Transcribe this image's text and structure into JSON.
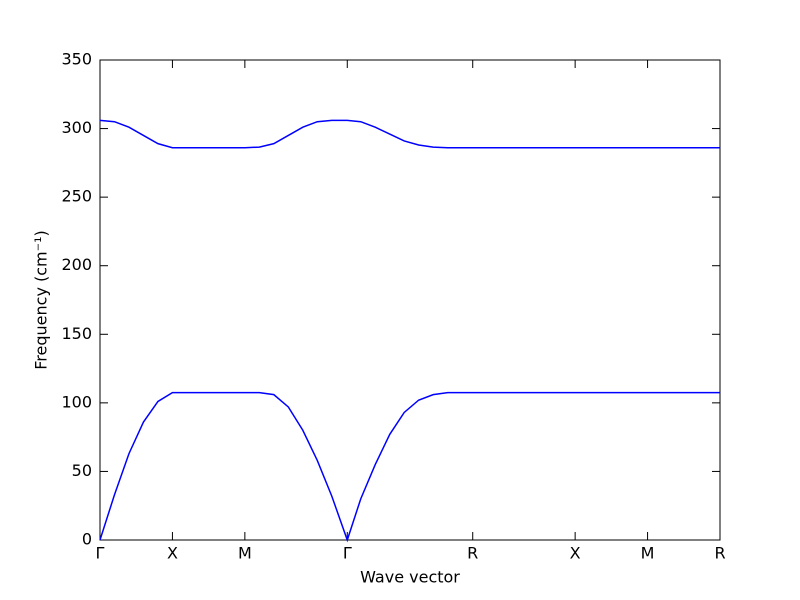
{
  "chart_data": {
    "type": "line",
    "xlabel": "Wave vector",
    "ylabel": "Frequency (cm⁻¹)",
    "x": [
      0,
      0.1,
      0.2,
      0.3,
      0.4,
      0.5,
      0.75,
      1.0,
      1.1,
      1.2,
      1.3,
      1.4,
      1.5,
      1.6,
      1.707,
      1.8,
      1.9,
      2.0,
      2.1,
      2.2,
      2.3,
      2.4,
      2.573,
      3.28,
      3.78,
      4.28
    ],
    "series": [
      {
        "color": "#0000ff",
        "values": [
          0,
          33,
          63,
          86,
          101,
          107.5,
          107.5,
          107.5,
          107.5,
          106,
          97,
          80,
          58,
          32,
          0,
          30,
          55,
          77,
          93,
          102,
          106,
          107.5,
          107.5,
          107.5,
          107.5,
          107.5
        ]
      },
      {
        "color": "#0000ff",
        "values": [
          306,
          305,
          301,
          295,
          289,
          286,
          286,
          286,
          286.5,
          289,
          295,
          301,
          305,
          306,
          306,
          305,
          301,
          296,
          291,
          288,
          286.5,
          286,
          286,
          286,
          286,
          286
        ]
      }
    ],
    "xlim": [
      0,
      4.28
    ],
    "xticks": [
      {
        "value": 0,
        "label": "Γ"
      },
      {
        "value": 0.5,
        "label": "X"
      },
      {
        "value": 1.0,
        "label": "M"
      },
      {
        "value": 1.707,
        "label": "Γ"
      },
      {
        "value": 2.573,
        "label": "R"
      },
      {
        "value": 3.28,
        "label": "X"
      },
      {
        "value": 3.78,
        "label": "M"
      },
      {
        "value": 4.28,
        "label": "R"
      }
    ],
    "ylim": [
      0,
      350
    ],
    "yticks": [
      0,
      50,
      100,
      150,
      200,
      250,
      300,
      350
    ]
  }
}
